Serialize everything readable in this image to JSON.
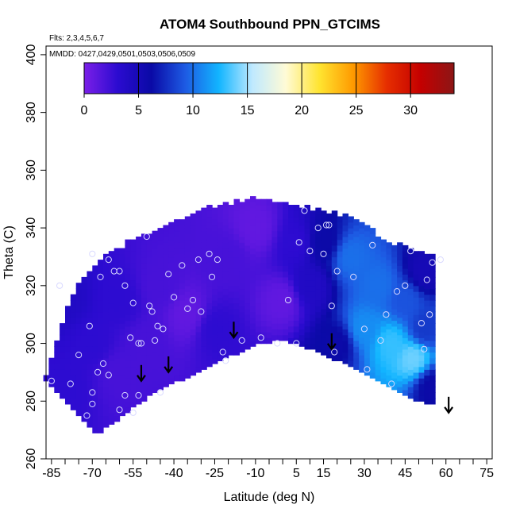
{
  "chart_data": {
    "type": "heatmap",
    "title": "ATOM4 Southbound PPN_GTCIMS",
    "subtitle_flights": "Flts: 2,3,4,5,6,7",
    "subtitle_dates": "MMDD: 0427,0429,0501,0503,0506,0509",
    "xlabel": "Latitude (deg N)",
    "ylabel": "Theta (C)",
    "xlim": [
      -87,
      77
    ],
    "ylim": [
      260,
      403
    ],
    "x_ticks": [
      -85,
      -70,
      -55,
      -40,
      -25,
      -10,
      5,
      15,
      30,
      45,
      60,
      75
    ],
    "x_minor_ticks": [
      -85,
      -80,
      -75,
      -70,
      -65,
      -60,
      -55,
      -50,
      -45,
      -40,
      -35,
      -30,
      -25,
      -20,
      -15,
      -10,
      -5,
      0,
      5,
      10,
      15,
      20,
      25,
      30,
      35,
      40,
      45,
      50,
      55,
      60,
      65,
      70,
      75
    ],
    "y_ticks": [
      260,
      280,
      300,
      320,
      340,
      360,
      380,
      400
    ],
    "colorbar": {
      "min": 0,
      "max": 34,
      "ticks": [
        0,
        5,
        10,
        15,
        20,
        25,
        30
      ],
      "colors": [
        "#7b1fe8",
        "#2b0bd0",
        "#0a0aa6",
        "#1d5ae3",
        "#12b5ff",
        "#bfe9ff",
        "#fffbd6",
        "#ffe430",
        "#ff9a00",
        "#e62e00",
        "#c40000",
        "#8c1616"
      ]
    },
    "lower_boundary": [
      [
        -69,
        268
      ],
      [
        -65,
        272
      ],
      [
        -60,
        275
      ],
      [
        -55,
        279
      ],
      [
        -50,
        282
      ],
      [
        -45,
        285
      ],
      [
        -40,
        287
      ],
      [
        -35,
        289
      ],
      [
        -30,
        291
      ],
      [
        -25,
        294
      ],
      [
        -20,
        296
      ],
      [
        -15,
        298
      ],
      [
        -10,
        300
      ],
      [
        -5,
        301
      ],
      [
        0,
        301
      ],
      [
        5,
        300
      ],
      [
        10,
        298
      ],
      [
        15,
        296
      ],
      [
        20,
        294
      ],
      [
        25,
        292
      ],
      [
        30,
        289
      ],
      [
        35,
        287
      ],
      [
        40,
        284
      ],
      [
        45,
        282
      ],
      [
        50,
        280
      ],
      [
        55,
        279
      ]
    ],
    "upper_boundary": [
      [
        -88,
        288
      ],
      [
        -85,
        296
      ],
      [
        -80,
        313
      ],
      [
        -75,
        322
      ],
      [
        -70,
        327
      ],
      [
        -65,
        330
      ],
      [
        -60,
        333
      ],
      [
        -55,
        336
      ],
      [
        -50,
        338
      ],
      [
        -45,
        340
      ],
      [
        -40,
        342
      ],
      [
        -35,
        344
      ],
      [
        -30,
        346
      ],
      [
        -25,
        347
      ],
      [
        -20,
        348
      ],
      [
        -15,
        349
      ],
      [
        -10,
        350
      ],
      [
        -5,
        349
      ],
      [
        0,
        348
      ],
      [
        5,
        347
      ],
      [
        10,
        346
      ],
      [
        15,
        345
      ],
      [
        20,
        344
      ],
      [
        25,
        343
      ],
      [
        30,
        340
      ],
      [
        35,
        336
      ],
      [
        40,
        334
      ],
      [
        45,
        333
      ],
      [
        50,
        331
      ],
      [
        55,
        329
      ],
      [
        57,
        322
      ],
      [
        57,
        300
      ],
      [
        56,
        285
      ],
      [
        55,
        279
      ]
    ],
    "field_samples": [
      {
        "lat": -80,
        "theta": 285,
        "value": 3
      },
      {
        "lat": -80,
        "theta": 315,
        "value": 4
      },
      {
        "lat": -70,
        "theta": 300,
        "value": 3
      },
      {
        "lat": -60,
        "theta": 290,
        "value": 2
      },
      {
        "lat": -60,
        "theta": 315,
        "value": 3
      },
      {
        "lat": -50,
        "theta": 300,
        "value": 2
      },
      {
        "lat": -45,
        "theta": 320,
        "value": 2
      },
      {
        "lat": -35,
        "theta": 310,
        "value": 1
      },
      {
        "lat": -25,
        "theta": 305,
        "value": 3
      },
      {
        "lat": -20,
        "theta": 330,
        "value": 2
      },
      {
        "lat": -10,
        "theta": 340,
        "value": 1
      },
      {
        "lat": 0,
        "theta": 315,
        "value": 1
      },
      {
        "lat": 5,
        "theta": 335,
        "value": 3
      },
      {
        "lat": 10,
        "theta": 320,
        "value": 4
      },
      {
        "lat": 15,
        "theta": 335,
        "value": 6
      },
      {
        "lat": 20,
        "theta": 300,
        "value": 6
      },
      {
        "lat": 25,
        "theta": 330,
        "value": 10
      },
      {
        "lat": 30,
        "theta": 305,
        "value": 11
      },
      {
        "lat": 35,
        "theta": 320,
        "value": 10
      },
      {
        "lat": 40,
        "theta": 300,
        "value": 13
      },
      {
        "lat": 45,
        "theta": 315,
        "value": 9
      },
      {
        "lat": 48,
        "theta": 295,
        "value": 14
      },
      {
        "lat": 52,
        "theta": 305,
        "value": 8
      },
      {
        "lat": 52,
        "theta": 325,
        "value": 5
      },
      {
        "lat": 55,
        "theta": 285,
        "value": 6
      }
    ],
    "sample_points": [
      [
        -82,
        320
      ],
      [
        -85,
        287
      ],
      [
        -78,
        286
      ],
      [
        -75,
        296
      ],
      [
        -72,
        275
      ],
      [
        -70,
        283
      ],
      [
        -70,
        279
      ],
      [
        -68,
        290
      ],
      [
        -66,
        293
      ],
      [
        -64,
        289
      ],
      [
        -71,
        306
      ],
      [
        -70,
        331
      ],
      [
        -67,
        323
      ],
      [
        -64,
        329
      ],
      [
        -62,
        325
      ],
      [
        -60,
        325
      ],
      [
        -58,
        320
      ],
      [
        -56,
        302
      ],
      [
        -55,
        314
      ],
      [
        -53,
        300
      ],
      [
        -52,
        300
      ],
      [
        -50,
        337
      ],
      [
        -49,
        313
      ],
      [
        -48,
        311
      ],
      [
        -47,
        301
      ],
      [
        -46,
        306
      ],
      [
        -44,
        305
      ],
      [
        -42,
        324
      ],
      [
        -40,
        316
      ],
      [
        -37,
        327
      ],
      [
        -35,
        312
      ],
      [
        -33,
        315
      ],
      [
        -31,
        329
      ],
      [
        -30,
        311
      ],
      [
        -27,
        331
      ],
      [
        -26,
        323
      ],
      [
        -24,
        329
      ],
      [
        -22,
        297
      ],
      [
        -21,
        294
      ],
      [
        -15,
        301
      ],
      [
        -8,
        302
      ],
      [
        2,
        315
      ],
      [
        -2,
        300
      ],
      [
        5,
        300
      ],
      [
        6,
        335
      ],
      [
        8,
        346
      ],
      [
        10,
        332
      ],
      [
        13,
        340
      ],
      [
        15,
        331
      ],
      [
        16,
        341
      ],
      [
        17,
        341
      ],
      [
        18,
        313
      ],
      [
        19,
        297
      ],
      [
        20,
        325
      ],
      [
        26,
        323
      ],
      [
        30,
        305
      ],
      [
        31,
        291
      ],
      [
        33,
        334
      ],
      [
        36,
        301
      ],
      [
        38,
        310
      ],
      [
        40,
        286
      ],
      [
        42,
        318
      ],
      [
        45,
        320
      ],
      [
        47,
        332
      ],
      [
        52,
        298
      ],
      [
        53,
        322
      ],
      [
        54,
        310
      ],
      [
        55,
        328
      ],
      [
        51,
        307
      ],
      [
        58,
        329
      ],
      [
        -58,
        282
      ],
      [
        -53,
        282
      ],
      [
        -55,
        276
      ],
      [
        -60,
        277
      ],
      [
        -45,
        283
      ]
    ],
    "arrows": [
      [
        -52,
        287
      ],
      [
        -42,
        290
      ],
      [
        -18,
        302
      ],
      [
        18,
        298
      ],
      [
        61,
        276
      ]
    ]
  }
}
